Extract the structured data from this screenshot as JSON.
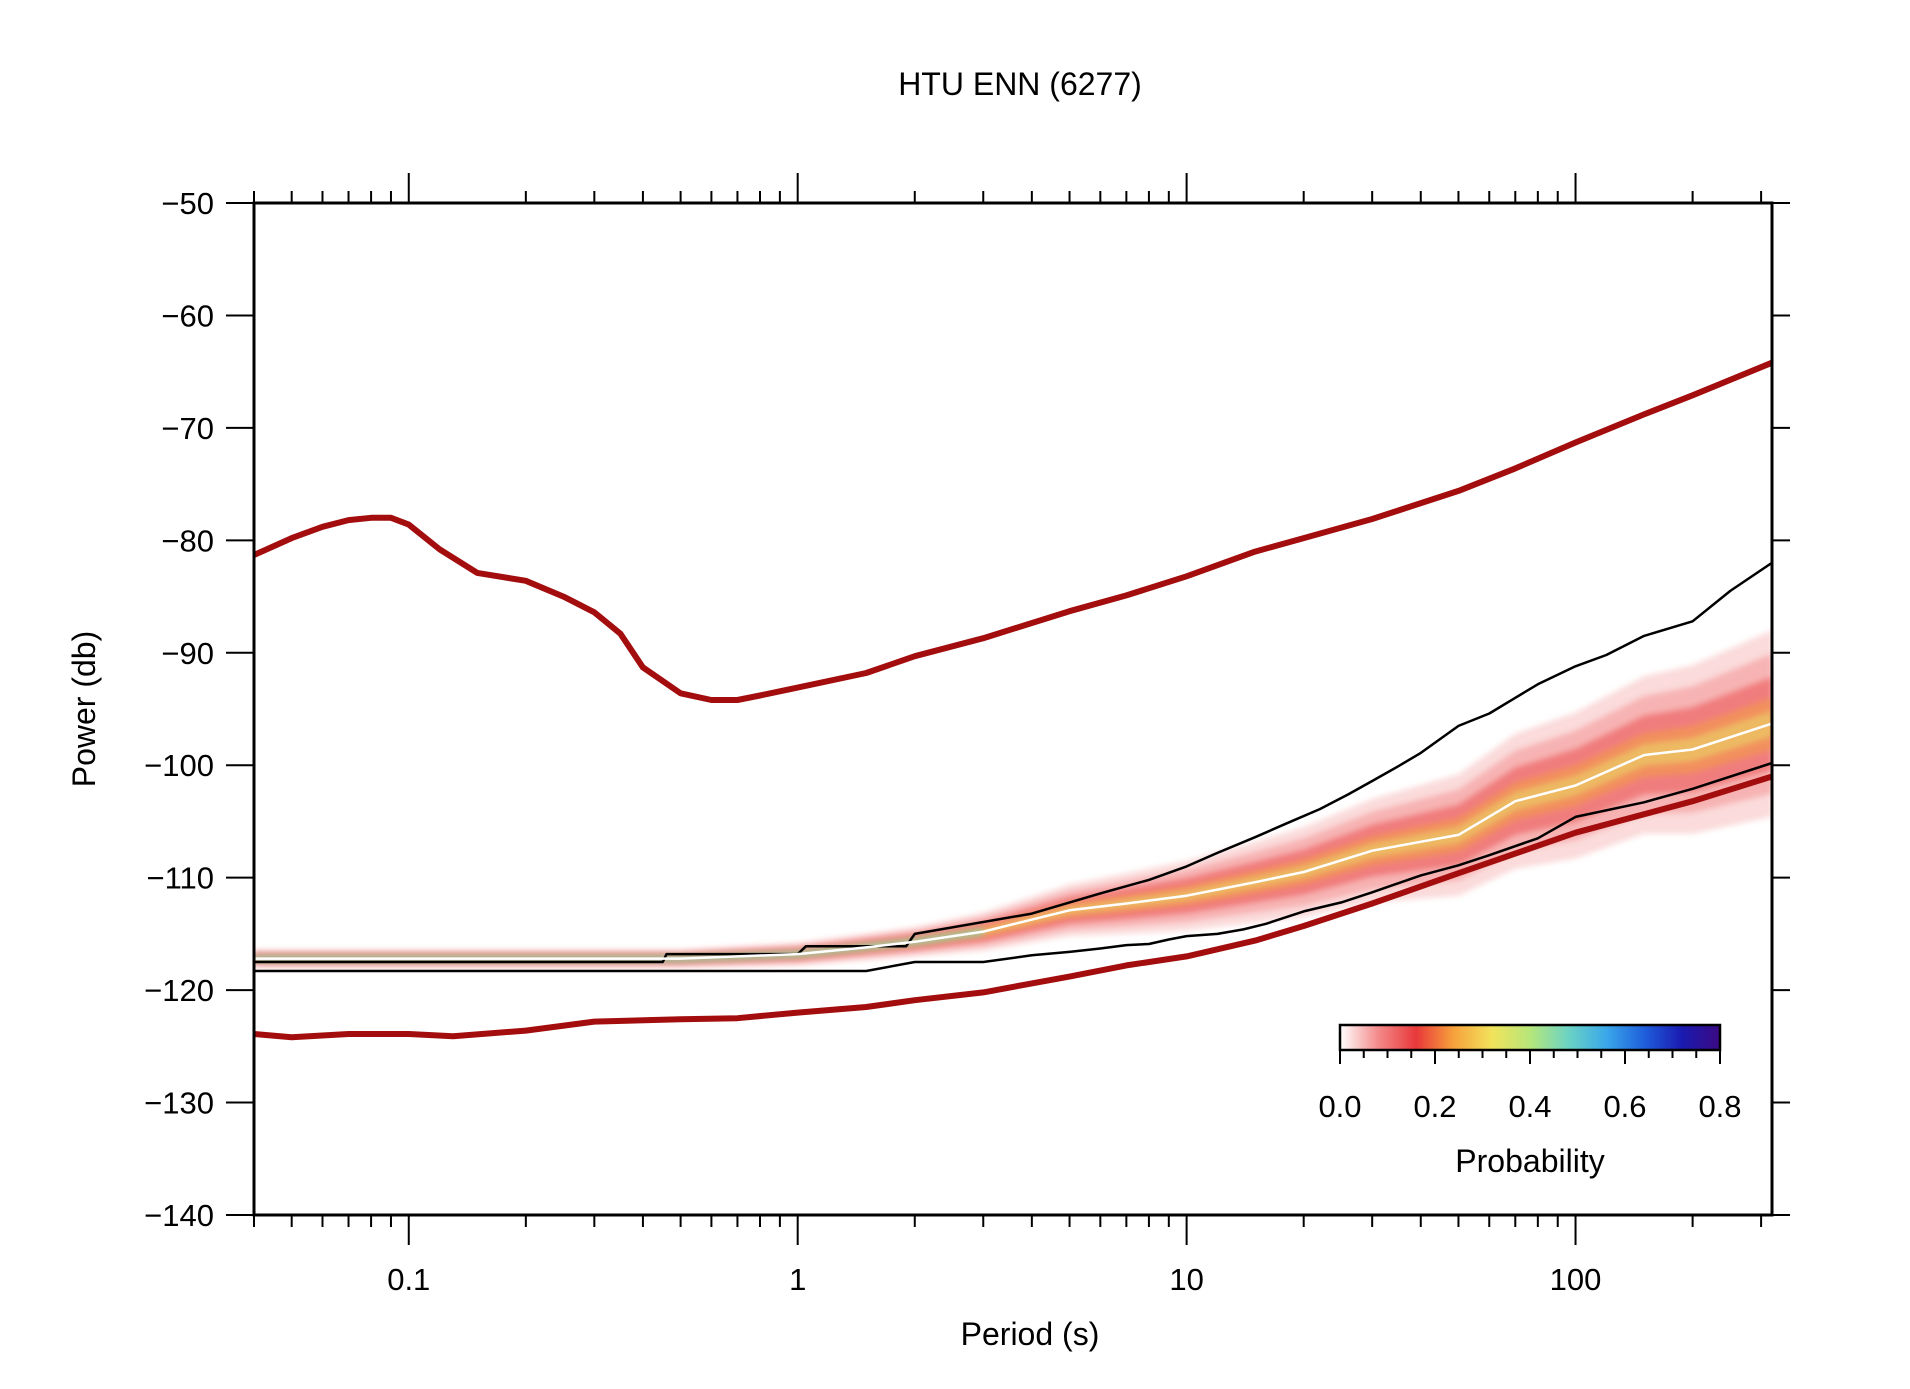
{
  "chart_data": {
    "type": "line",
    "title": "HTU ENN (6277)",
    "xlabel": "Period (s)",
    "ylabel": "Power (db)",
    "x_scale": "log",
    "xlim": [
      0.04,
      320
    ],
    "ylim": [
      -140,
      -50
    ],
    "x_ticks": [
      0.1,
      1,
      10,
      100
    ],
    "x_tick_labels": [
      "0.1",
      "1",
      "10",
      "100"
    ],
    "y_ticks": [
      -50,
      -60,
      -70,
      -80,
      -90,
      -100,
      -110,
      -120,
      -130,
      -140
    ],
    "y_tick_labels": [
      "−50",
      "−60",
      "−70",
      "−80",
      "−90",
      "−100",
      "−110",
      "−120",
      "−130",
      "−140"
    ],
    "grid": false,
    "colors": {
      "noise_models": "#a30d0d",
      "percentiles": "#000000",
      "mode": "#ffffff"
    },
    "series": [
      {
        "role": "high-noise-model",
        "x": [
          0.04,
          0.05,
          0.06,
          0.07,
          0.08,
          0.09,
          0.1,
          0.12,
          0.15,
          0.2,
          0.25,
          0.3,
          0.35,
          0.4,
          0.5,
          0.6,
          0.7,
          0.8,
          1,
          1.5,
          2,
          3,
          5,
          7,
          10,
          15,
          20,
          30,
          50,
          70,
          100,
          150,
          200,
          320
        ],
        "y": [
          -81.3,
          -79.8,
          -78.8,
          -78.2,
          -78.0,
          -78.0,
          -78.6,
          -80.8,
          -82.9,
          -83.6,
          -85.0,
          -86.4,
          -88.3,
          -91.3,
          -93.6,
          -94.2,
          -94.2,
          -93.8,
          -93.1,
          -91.8,
          -90.3,
          -88.7,
          -86.3,
          -84.9,
          -83.2,
          -81.0,
          -79.8,
          -78.1,
          -75.6,
          -73.6,
          -71.3,
          -68.8,
          -67.1,
          -64.2
        ]
      },
      {
        "role": "low-noise-model",
        "x": [
          0.04,
          0.05,
          0.07,
          0.1,
          0.13,
          0.2,
          0.3,
          0.5,
          0.7,
          1,
          1.5,
          2,
          3,
          4,
          5,
          7,
          10,
          15,
          20,
          30,
          50,
          100,
          200,
          320
        ],
        "y": [
          -123.9,
          -124.2,
          -123.9,
          -123.9,
          -124.1,
          -123.6,
          -122.8,
          -122.6,
          -122.5,
          -122.0,
          -121.5,
          -120.9,
          -120.2,
          -119.4,
          -118.8,
          -117.8,
          -117.0,
          -115.6,
          -114.3,
          -112.3,
          -109.6,
          -106.0,
          -103.2,
          -101.0
        ]
      },
      {
        "role": "upper-percentile",
        "x": [
          0.04,
          0.3,
          0.45,
          0.46,
          1.0,
          1.05,
          1.9,
          2.0,
          4.0,
          6.0,
          8.0,
          10,
          12,
          15,
          18,
          22,
          26,
          30,
          35,
          40,
          50,
          60,
          70,
          80,
          100,
          120,
          150,
          200,
          250,
          320
        ],
        "y": [
          -117.5,
          -117.5,
          -117.5,
          -116.8,
          -116.8,
          -116.1,
          -116.1,
          -115.0,
          -113.2,
          -111.4,
          -110.2,
          -109.0,
          -107.8,
          -106.4,
          -105.2,
          -103.9,
          -102.6,
          -101.4,
          -100.1,
          -98.9,
          -96.5,
          -95.4,
          -94.0,
          -92.8,
          -91.2,
          -90.2,
          -88.5,
          -87.2,
          -84.5,
          -82.0
        ]
      },
      {
        "role": "mode",
        "x": [
          0.04,
          0.5,
          1,
          1.5,
          2,
          3,
          5,
          7,
          10,
          15,
          20,
          30,
          50,
          70,
          100,
          150,
          200,
          320
        ],
        "y": [
          -117.2,
          -117.2,
          -116.8,
          -116.2,
          -115.7,
          -114.8,
          -112.9,
          -112.3,
          -111.6,
          -110.4,
          -109.5,
          -107.6,
          -106.2,
          -103.2,
          -101.8,
          -99.1,
          -98.6,
          -96.3
        ]
      },
      {
        "role": "lower-percentile",
        "x": [
          0.04,
          0.5,
          1.0,
          1.5,
          2,
          3,
          4,
          5,
          6,
          7,
          8,
          9,
          10,
          12,
          14,
          16,
          20,
          25,
          30,
          40,
          50,
          60,
          80,
          100,
          150,
          200,
          320
        ],
        "y": [
          -118.3,
          -118.3,
          -118.3,
          -118.3,
          -117.5,
          -117.5,
          -116.9,
          -116.6,
          -116.3,
          -116.0,
          -115.9,
          -115.5,
          -115.2,
          -115.0,
          -114.6,
          -114.1,
          -113.0,
          -112.2,
          -111.3,
          -109.8,
          -108.9,
          -108.0,
          -106.5,
          -104.6,
          -103.3,
          -102.1,
          -99.8
        ]
      }
    ],
    "colorbar": {
      "label": "Probability",
      "range": [
        0,
        0.8
      ],
      "tick_labels": [
        "0.0",
        "0.2",
        "0.4",
        "0.6",
        "0.8"
      ],
      "colors": [
        "#ffffff",
        "#f48a8a",
        "#e8383a",
        "#f7a23c",
        "#f2e35b",
        "#b6e67a",
        "#6cd3c3",
        "#3aa8ea",
        "#1f5fdc",
        "#1a1ab0",
        "#3b0a82"
      ],
      "placement": "bottom-right"
    },
    "density_band": {
      "description": "probability density of PSD values",
      "x": [
        0.04,
        0.5,
        1,
        2,
        3,
        5,
        7,
        10,
        15,
        20,
        30,
        50,
        70,
        100,
        150,
        200,
        320
      ],
      "center": [
        -117.2,
        -117.2,
        -116.8,
        -115.7,
        -114.8,
        -112.9,
        -112.3,
        -111.6,
        -110.4,
        -109.5,
        -107.6,
        -106.2,
        -103.2,
        -101.8,
        -99.1,
        -98.6,
        -96.3
      ],
      "half_width": [
        0.8,
        0.8,
        1.0,
        1.3,
        1.7,
        2.3,
        2.7,
        3.1,
        3.6,
        4.0,
        4.6,
        5.4,
        6.0,
        6.5,
        7.0,
        7.5,
        8.3
      ]
    }
  }
}
